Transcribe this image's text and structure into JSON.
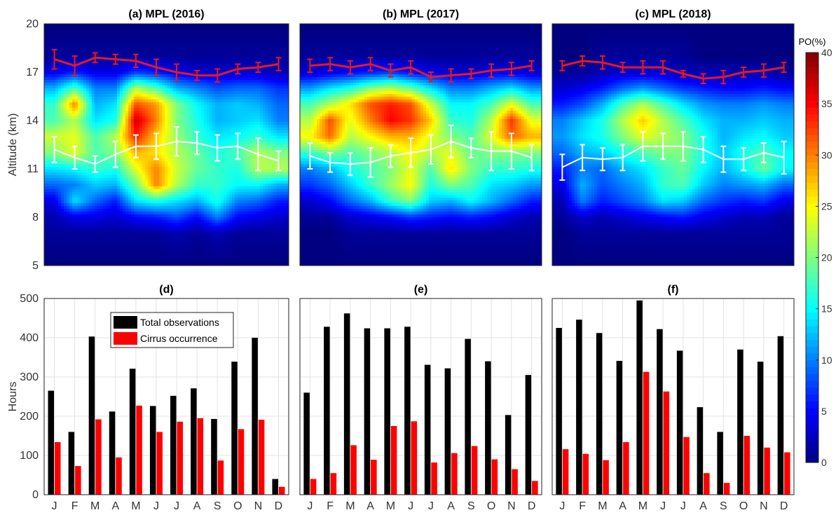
{
  "figure": {
    "colorbar": {
      "label": "PO(%)",
      "min": 0,
      "max": 40,
      "ticks": [
        0,
        5,
        10,
        15,
        20,
        25,
        30,
        35,
        40
      ]
    }
  },
  "chart_data": [
    {
      "type": "heatmap",
      "title": "(a) MPL (2016)",
      "ylabel": "Altitude (km)",
      "ylim": [
        5,
        20
      ],
      "yticks": [
        5,
        8,
        11,
        14,
        17,
        20
      ],
      "colorscale": "jet",
      "x": [
        "J",
        "F",
        "M",
        "A",
        "M",
        "J",
        "J",
        "A",
        "S",
        "O",
        "N",
        "D"
      ],
      "tropopause": {
        "color": "#e8191b",
        "mean": [
          17.8,
          17.4,
          17.9,
          17.8,
          17.7,
          17.3,
          17.0,
          16.8,
          16.8,
          17.2,
          17.3,
          17.5
        ],
        "err": [
          0.6,
          0.6,
          0.3,
          0.3,
          0.4,
          0.5,
          0.5,
          0.3,
          0.4,
          0.3,
          0.3,
          0.4
        ]
      },
      "cirrus_base": {
        "color": "#ffffff",
        "mean": [
          12.2,
          11.7,
          11.3,
          11.9,
          12.4,
          12.4,
          12.7,
          12.6,
          12.3,
          12.4,
          11.9,
          11.5
        ],
        "err": [
          0.8,
          0.7,
          0.5,
          0.8,
          0.7,
          0.8,
          0.9,
          0.7,
          0.8,
          0.8,
          1.0,
          0.6
        ]
      },
      "po_grid": {
        "altitudes": [
          5,
          7,
          8,
          9,
          10,
          11,
          12,
          13,
          14,
          15,
          16,
          17,
          18,
          20
        ],
        "values": [
          [
            0,
            0,
            0,
            0,
            0,
            0,
            0,
            0,
            0,
            0,
            0,
            0
          ],
          [
            1,
            1,
            1,
            1,
            1,
            1,
            2,
            1,
            2,
            1,
            1,
            1
          ],
          [
            2,
            4,
            4,
            3,
            5,
            6,
            8,
            5,
            10,
            5,
            4,
            3
          ],
          [
            4,
            14,
            9,
            6,
            14,
            16,
            14,
            12,
            16,
            10,
            9,
            6
          ],
          [
            9,
            10,
            13,
            12,
            19,
            30,
            22,
            17,
            17,
            15,
            15,
            12
          ],
          [
            14,
            15,
            17,
            16,
            24,
            30,
            23,
            19,
            17,
            16,
            22,
            22
          ],
          [
            20,
            24,
            18,
            20,
            28,
            26,
            22,
            19,
            16,
            18,
            22,
            20
          ],
          [
            23,
            24,
            18,
            22,
            34,
            27,
            21,
            17,
            14,
            15,
            17,
            14
          ],
          [
            18,
            22,
            14,
            16,
            37,
            30,
            20,
            16,
            12,
            13,
            14,
            10
          ],
          [
            17,
            30,
            12,
            14,
            32,
            29,
            20,
            15,
            12,
            13,
            12,
            9
          ],
          [
            12,
            18,
            10,
            10,
            22,
            18,
            12,
            10,
            8,
            9,
            9,
            7
          ],
          [
            4,
            6,
            4,
            4,
            7,
            6,
            4,
            3,
            3,
            3,
            3,
            2
          ],
          [
            1,
            1,
            1,
            1,
            1,
            1,
            1,
            1,
            1,
            1,
            1,
            1
          ],
          [
            0,
            0,
            0,
            0,
            0,
            0,
            0,
            0,
            0,
            0,
            0,
            0
          ]
        ]
      }
    },
    {
      "type": "heatmap",
      "title": "(b) MPL (2017)",
      "ylim": [
        5,
        20
      ],
      "colorscale": "jet",
      "x": [
        "J",
        "F",
        "M",
        "A",
        "M",
        "J",
        "J",
        "A",
        "S",
        "O",
        "N",
        "D"
      ],
      "tropopause": {
        "color": "#e8191b",
        "mean": [
          17.4,
          17.5,
          17.3,
          17.5,
          17.1,
          17.3,
          16.7,
          16.8,
          16.9,
          17.1,
          17.2,
          17.4
        ],
        "err": [
          0.4,
          0.4,
          0.4,
          0.4,
          0.4,
          0.4,
          0.3,
          0.4,
          0.3,
          0.4,
          0.4,
          0.3
        ]
      },
      "cirrus_base": {
        "color": "#ffffff",
        "mean": [
          11.8,
          11.4,
          11.3,
          11.4,
          11.8,
          12.0,
          12.2,
          12.7,
          12.3,
          12.1,
          12.1,
          11.7
        ],
        "err": [
          0.8,
          0.6,
          0.7,
          0.9,
          0.7,
          0.9,
          0.9,
          1.0,
          0.6,
          1.2,
          1.1,
          0.8
        ]
      },
      "po_grid": {
        "altitudes": [
          5,
          7,
          8,
          9,
          10,
          11,
          12,
          13,
          14,
          15,
          16,
          17,
          18,
          20
        ],
        "values": [
          [
            0,
            0,
            0,
            0,
            0,
            0,
            0,
            0,
            0,
            0,
            0,
            0
          ],
          [
            0,
            0,
            1,
            1,
            1,
            1,
            1,
            1,
            1,
            1,
            1,
            1
          ],
          [
            1,
            1,
            3,
            4,
            5,
            7,
            6,
            5,
            6,
            5,
            3,
            2
          ],
          [
            3,
            5,
            9,
            12,
            17,
            20,
            13,
            12,
            15,
            12,
            9,
            6
          ],
          [
            7,
            9,
            13,
            17,
            21,
            25,
            16,
            20,
            18,
            14,
            13,
            11
          ],
          [
            10,
            12,
            16,
            18,
            20,
            24,
            18,
            26,
            20,
            17,
            17,
            16
          ],
          [
            17,
            20,
            18,
            20,
            22,
            25,
            22,
            24,
            19,
            20,
            20,
            20
          ],
          [
            25,
            31,
            22,
            25,
            28,
            28,
            24,
            20,
            18,
            24,
            31,
            28
          ],
          [
            22,
            32,
            24,
            30,
            35,
            33,
            27,
            17,
            16,
            22,
            33,
            24
          ],
          [
            18,
            22,
            26,
            32,
            34,
            32,
            23,
            15,
            15,
            18,
            24,
            18
          ],
          [
            11,
            14,
            16,
            20,
            22,
            19,
            14,
            10,
            10,
            12,
            14,
            11
          ],
          [
            3,
            4,
            5,
            6,
            7,
            5,
            4,
            3,
            3,
            4,
            4,
            3
          ],
          [
            1,
            1,
            1,
            1,
            1,
            1,
            1,
            1,
            1,
            1,
            1,
            1
          ],
          [
            0,
            0,
            0,
            0,
            0,
            0,
            0,
            0,
            0,
            0,
            0,
            0
          ]
        ]
      }
    },
    {
      "type": "heatmap",
      "title": "(c) MPL (2018)",
      "ylim": [
        5,
        20
      ],
      "colorscale": "jet",
      "x": [
        "J",
        "F",
        "M",
        "A",
        "M",
        "J",
        "J",
        "A",
        "S",
        "O",
        "N",
        "D"
      ],
      "tropopause": {
        "color": "#e8191b",
        "mean": [
          17.4,
          17.7,
          17.6,
          17.3,
          17.3,
          17.3,
          16.9,
          16.6,
          16.7,
          17.0,
          17.1,
          17.3
        ],
        "err": [
          0.3,
          0.3,
          0.4,
          0.3,
          0.4,
          0.4,
          0.2,
          0.3,
          0.4,
          0.3,
          0.4,
          0.3
        ]
      },
      "cirrus_base": {
        "color": "#ffffff",
        "mean": [
          11.1,
          11.7,
          11.6,
          11.7,
          12.4,
          12.4,
          12.4,
          12.2,
          11.6,
          11.6,
          12.0,
          11.7
        ],
        "err": [
          0.8,
          0.8,
          0.7,
          0.8,
          0.9,
          0.8,
          0.9,
          0.8,
          0.8,
          0.7,
          0.6,
          1.0
        ]
      },
      "po_grid": {
        "altitudes": [
          5,
          7,
          8,
          9,
          10,
          11,
          12,
          13,
          14,
          15,
          16,
          17,
          18,
          20
        ],
        "values": [
          [
            0,
            0,
            0,
            0,
            0,
            0,
            0,
            0,
            0,
            0,
            0,
            0
          ],
          [
            0,
            1,
            1,
            1,
            1,
            1,
            1,
            1,
            1,
            1,
            1,
            1
          ],
          [
            1,
            3,
            2,
            3,
            4,
            5,
            6,
            4,
            3,
            2,
            2,
            1
          ],
          [
            2,
            10,
            6,
            8,
            10,
            14,
            13,
            9,
            7,
            6,
            7,
            4
          ],
          [
            4,
            12,
            8,
            10,
            12,
            17,
            18,
            13,
            10,
            11,
            12,
            9
          ],
          [
            6,
            10,
            9,
            12,
            14,
            17,
            19,
            15,
            12,
            15,
            19,
            15
          ],
          [
            9,
            12,
            13,
            16,
            18,
            20,
            20,
            16,
            13,
            16,
            18,
            15
          ],
          [
            11,
            14,
            16,
            20,
            24,
            22,
            20,
            16,
            12,
            14,
            15,
            13
          ],
          [
            10,
            13,
            16,
            22,
            27,
            22,
            18,
            14,
            12,
            12,
            13,
            12
          ],
          [
            6,
            8,
            12,
            18,
            22,
            18,
            14,
            11,
            10,
            10,
            11,
            10
          ],
          [
            3,
            4,
            6,
            9,
            11,
            9,
            7,
            6,
            5,
            5,
            6,
            5
          ],
          [
            1,
            1,
            2,
            3,
            3,
            3,
            2,
            2,
            2,
            2,
            2,
            1
          ],
          [
            0,
            0,
            1,
            1,
            1,
            1,
            1,
            0,
            0,
            0,
            0,
            0
          ],
          [
            0,
            0,
            0,
            0,
            0,
            0,
            0,
            0,
            0,
            0,
            0,
            0
          ]
        ]
      }
    },
    {
      "type": "bar",
      "title": "(d)",
      "ylabel": "Hours",
      "ylim": [
        0,
        500
      ],
      "yticks": [
        0,
        100,
        200,
        300,
        400,
        500
      ],
      "grid": true,
      "legend": "top-left",
      "categories": [
        "J",
        "F",
        "M",
        "A",
        "M",
        "J",
        "J",
        "A",
        "S",
        "O",
        "N",
        "D"
      ],
      "series": [
        {
          "name": "Total observations",
          "color": "#000000",
          "values": [
            265,
            160,
            403,
            212,
            321,
            226,
            252,
            271,
            193,
            339,
            400,
            40
          ]
        },
        {
          "name": "Cirrus occurrence",
          "color": "#ff0000",
          "values": [
            134,
            73,
            192,
            95,
            227,
            160,
            186,
            195,
            87,
            167,
            191,
            20
          ]
        }
      ]
    },
    {
      "type": "bar",
      "title": "(e)",
      "ylim": [
        0,
        500
      ],
      "grid": true,
      "categories": [
        "J",
        "F",
        "M",
        "A",
        "M",
        "J",
        "J",
        "A",
        "S",
        "O",
        "N",
        "D"
      ],
      "series": [
        {
          "name": "Total observations",
          "color": "#000000",
          "values": [
            260,
            428,
            462,
            424,
            424,
            428,
            331,
            322,
            397,
            340,
            203,
            305
          ]
        },
        {
          "name": "Cirrus occurrence",
          "color": "#ff0000",
          "values": [
            40,
            55,
            126,
            89,
            175,
            187,
            82,
            106,
            124,
            90,
            65,
            35
          ]
        }
      ]
    },
    {
      "type": "bar",
      "title": "(f)",
      "ylim": [
        0,
        500
      ],
      "grid": true,
      "categories": [
        "J",
        "F",
        "M",
        "A",
        "M",
        "J",
        "J",
        "A",
        "S",
        "O",
        "N",
        "D"
      ],
      "series": [
        {
          "name": "Total observations",
          "color": "#000000",
          "values": [
            425,
            446,
            412,
            341,
            495,
            422,
            367,
            223,
            160,
            370,
            339,
            404
          ]
        },
        {
          "name": "Cirrus occurrence",
          "color": "#ff0000",
          "values": [
            116,
            104,
            88,
            134,
            313,
            263,
            147,
            55,
            30,
            150,
            120,
            108
          ]
        }
      ]
    }
  ]
}
